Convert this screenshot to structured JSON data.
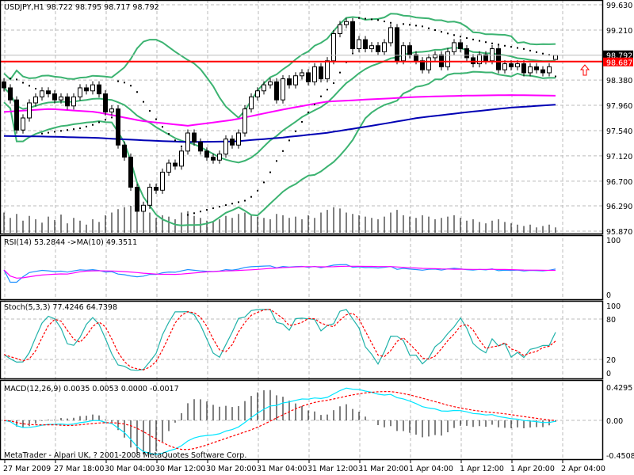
{
  "header": {
    "symbol_info": "USDJPY,H1  98.722 98.795 98.717 98.792"
  },
  "copyright": "MetaTrader - Alpari UK, ? 2001-2008 MetaQuotes Software Corp.",
  "colors": {
    "bollinger": "#3cb371",
    "ma_fast": "#ff00ff",
    "ma_slow": "#0000b4",
    "sar": "#000000",
    "alert_line": "#ff0000",
    "rsi": "#1e90ff",
    "rsi_ma": "#ff00ff",
    "stoch_main": "#20b2aa",
    "stoch_signal": "#ff0000",
    "macd_main": "#00e5ff",
    "macd_signal": "#ff0000"
  },
  "chart_data": [
    {
      "type": "candlestick",
      "title": "USDJPY,H1",
      "ylim": [
        95.87,
        99.63
      ],
      "y_ticks": [
        "99.630",
        "99.210",
        "98.380",
        "97.960",
        "97.540",
        "97.120",
        "96.700",
        "96.290",
        "95.870"
      ],
      "y_tick_values": [
        99.63,
        99.21,
        98.38,
        97.96,
        97.54,
        97.12,
        96.7,
        96.29,
        95.87
      ],
      "x_ticks": [
        "27 Mar 2009",
        "27 Mar 18:00",
        "30 Mar 04:00",
        "30 Mar 12:00",
        "30 Mar 20:00",
        "31 Mar 04:00",
        "31 Mar 12:00",
        "31 Mar 20:00",
        "1 Apr 04:00",
        "1 Apr 12:00",
        "1 Apr 20:00",
        "2 Apr 04:00"
      ],
      "last_bar": {
        "open": 98.722,
        "high": 98.795,
        "low": 98.717,
        "close": 98.792
      },
      "bid_label": "98.792",
      "alert_line": {
        "value": 98.687,
        "label": "98.687"
      },
      "close": [
        98.25,
        98.05,
        97.55,
        97.75,
        98.0,
        98.1,
        98.2,
        98.15,
        98.05,
        98.1,
        97.95,
        98.1,
        98.25,
        98.2,
        98.3,
        98.15,
        97.85,
        97.9,
        97.3,
        97.1,
        96.6,
        96.2,
        96.3,
        96.6,
        96.55,
        96.85,
        97.0,
        96.95,
        97.2,
        97.5,
        97.35,
        97.2,
        97.1,
        97.05,
        97.15,
        97.4,
        97.3,
        97.5,
        97.9,
        98.1,
        98.2,
        98.3,
        98.35,
        98.05,
        98.4,
        98.3,
        98.45,
        98.5,
        98.35,
        98.6,
        98.4,
        98.7,
        99.15,
        99.3,
        99.35,
        98.9,
        99.05,
        98.9,
        98.95,
        98.85,
        99.0,
        99.25,
        98.7,
        98.95,
        98.8,
        98.7,
        98.55,
        98.75,
        98.8,
        98.6,
        98.85,
        99.0,
        98.9,
        98.75,
        98.65,
        98.8,
        98.7,
        98.9,
        98.55,
        98.65,
        98.6,
        98.65,
        98.5,
        98.6,
        98.55,
        98.5,
        98.6,
        98.792
      ],
      "volume": [
        30,
        22,
        28,
        18,
        25,
        20,
        15,
        24,
        19,
        27,
        14,
        22,
        18,
        12,
        20,
        16,
        26,
        30,
        35,
        38,
        40,
        36,
        28,
        30,
        22,
        26,
        24,
        20,
        30,
        32,
        25,
        22,
        18,
        16,
        20,
        25,
        22,
        28,
        30,
        26,
        24,
        22,
        20,
        28,
        26,
        22,
        24,
        20,
        26,
        22,
        30,
        34,
        38,
        36,
        30,
        28,
        26,
        24,
        22,
        20,
        24,
        30,
        34,
        26,
        24,
        22,
        26,
        24,
        20,
        22,
        24,
        26,
        22,
        18,
        20,
        16,
        14,
        18,
        20,
        16,
        14,
        12,
        10,
        12,
        8,
        10,
        12,
        8
      ],
      "ma_fast_points": [
        97.85,
        97.9,
        97.85,
        97.7,
        97.62,
        97.72,
        97.88,
        98.02,
        98.06,
        98.1,
        98.12,
        98.13,
        98.12
      ],
      "ma_slow_points": [
        97.45,
        97.44,
        97.42,
        97.38,
        97.35,
        97.36,
        97.42,
        97.5,
        97.62,
        97.75,
        97.84,
        97.92,
        97.97
      ]
    },
    {
      "type": "line",
      "title": "RSI(14) 53.2844  ->MA(10) 49.3511",
      "ylim": [
        0,
        100
      ],
      "y_ticks": [
        "100",
        "0"
      ]
    },
    {
      "type": "line",
      "title": "Stoch(5,3,3) 77.4246 64.7398",
      "ylim": [
        0,
        100
      ],
      "y_ticks": [
        "100",
        "80",
        "20",
        "0"
      ],
      "y_tick_values": [
        100,
        80,
        20,
        0
      ]
    },
    {
      "type": "line",
      "title": "MACD(12,26,9) 0.0035 0.0053 0.0000 -0.0017",
      "ylim": [
        -0.4508,
        0.4295
      ],
      "y_ticks": [
        "0.4295",
        "0.00",
        "-0.4508"
      ],
      "y_tick_values": [
        0.4295,
        0,
        -0.4508
      ]
    }
  ]
}
